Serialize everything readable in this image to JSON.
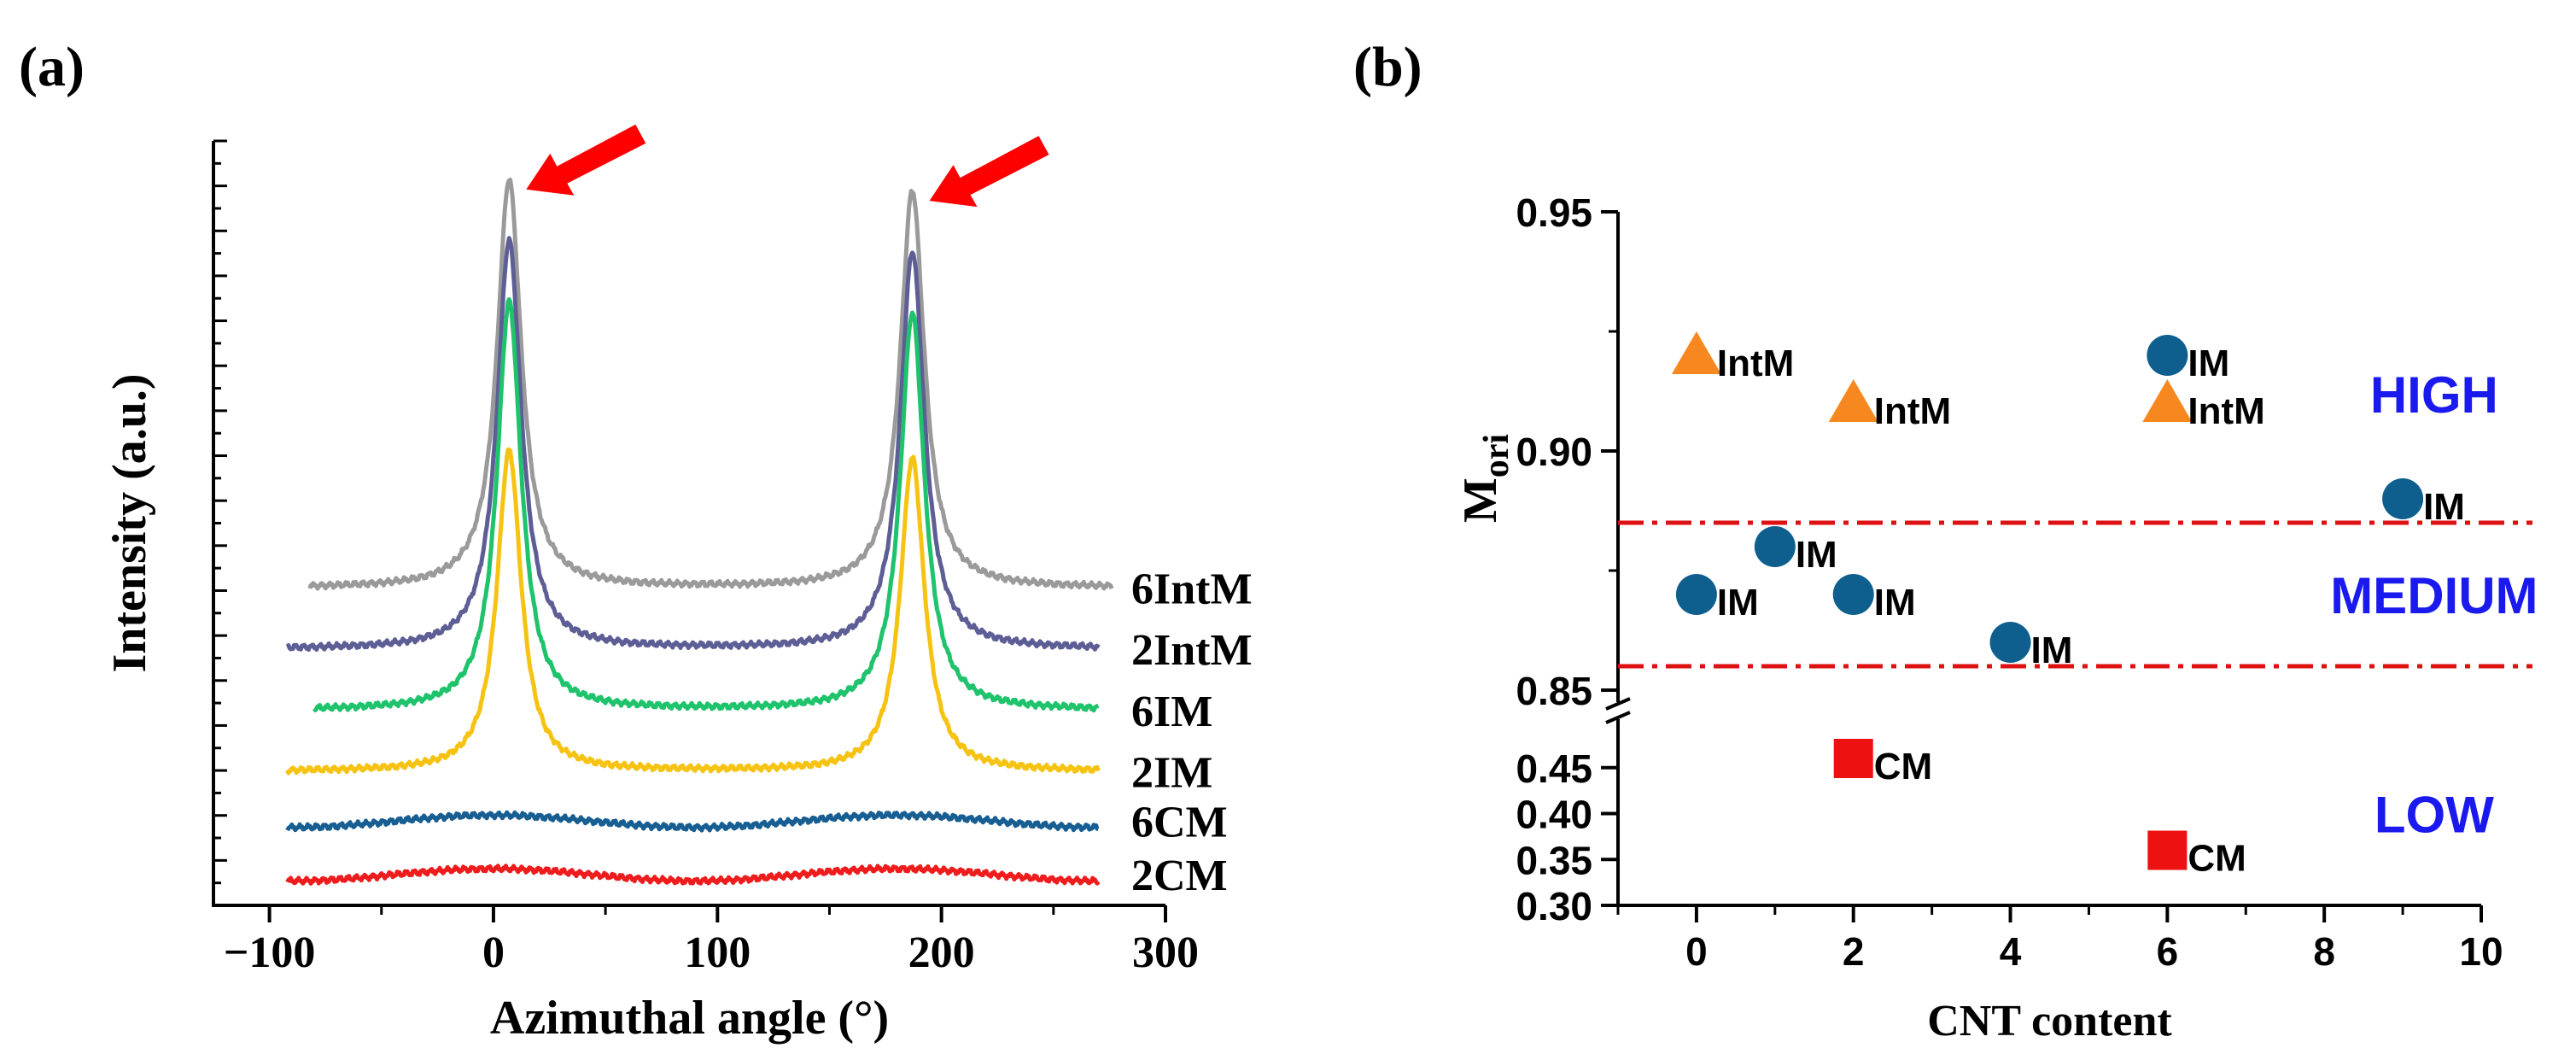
{
  "colors": {
    "axis": "#000000",
    "arrow": "#ff0000",
    "zone_line": "#dd1111",
    "zone_text": "#1a1aee",
    "circle": "#0e5f8e",
    "triangle": "#f7881f",
    "square": "#ee1111"
  },
  "chart_data": [
    {
      "panel_label": "(a)",
      "type": "line",
      "xlabel": "Azimuthal angle (°)",
      "ylabel": "Intensity (a.u.)",
      "xlim": [
        -125,
        300
      ],
      "xticks": [
        -100,
        0,
        100,
        200,
        300
      ],
      "xtick_labels": [
        "−100",
        "0",
        "100",
        "200",
        "300"
      ],
      "y_tick_labels_shown": false,
      "note_on_peaks": "Red arrows point at the 6IntM peaks near 7° and 187°",
      "series": [
        {
          "name": "6IntM",
          "color": "#9a9a9a",
          "x_range": [
            -82,
            276
          ],
          "baseline": 0.415,
          "peaks": [
            {
              "x": 7,
              "height": 0.535
            },
            {
              "x": 187,
              "height": 0.52
            }
          ]
        },
        {
          "name": "2IntM",
          "color": "#5e5e96",
          "x_range": [
            -92,
            270
          ],
          "baseline": 0.335,
          "peaks": [
            {
              "x": 7,
              "height": 0.535
            },
            {
              "x": 187,
              "height": 0.52
            }
          ]
        },
        {
          "name": "6IM",
          "color": "#1ec36c",
          "x_range": [
            -80,
            270
          ],
          "baseline": 0.255,
          "peaks": [
            {
              "x": 7,
              "height": 0.535
            },
            {
              "x": 187,
              "height": 0.52
            }
          ]
        },
        {
          "name": "2IM",
          "color": "#f6c313",
          "x_range": [
            -92,
            270
          ],
          "baseline": 0.175,
          "peaks": [
            {
              "x": 7,
              "height": 0.42
            },
            {
              "x": 187,
              "height": 0.41
            }
          ]
        },
        {
          "name": "6CM",
          "color": "#175e93",
          "x_range": [
            -92,
            270
          ],
          "baseline": 0.11,
          "peaks": []
        },
        {
          "name": "2CM",
          "color": "#ee1c1c",
          "x_range": [
            -92,
            270
          ],
          "baseline": 0.04,
          "peaks": []
        }
      ]
    },
    {
      "panel_label": "(b)",
      "type": "scatter",
      "xlabel": "CNT content",
      "ylabel": "M",
      "ylabel_subscript": "ori",
      "xlim": [
        -1,
        10
      ],
      "xticks": [
        0,
        2,
        4,
        6,
        8,
        10
      ],
      "ylim_upper": [
        0.85,
        0.95
      ],
      "yticks_upper": [
        "0.85",
        "0.90",
        "0.95"
      ],
      "ylim_lower": [
        0.3,
        0.5
      ],
      "yticks_lower": [
        "0.30",
        "0.35",
        "0.40",
        "0.45"
      ],
      "axis_break": "between 0.45 and 0.85",
      "threshold_lines": [
        0.885,
        0.855
      ],
      "zone_labels": [
        {
          "text": "HIGH",
          "x": 9.4,
          "y": 0.912
        },
        {
          "text": "MEDIUM",
          "x": 9.4,
          "y": 0.87
        },
        {
          "text": "LOW",
          "x": 9.4,
          "y": 0.4
        }
      ],
      "series": [
        {
          "marker": "circle",
          "points": [
            {
              "x": 0,
              "y": 0.87,
              "label": "IM"
            },
            {
              "x": 1,
              "y": 0.88,
              "label": "IM"
            },
            {
              "x": 2,
              "y": 0.87,
              "label": "IM"
            },
            {
              "x": 4,
              "y": 0.86,
              "label": "IM"
            },
            {
              "x": 6,
              "y": 0.92,
              "label": "IM"
            },
            {
              "x": 9,
              "y": 0.89,
              "label": "IM"
            }
          ]
        },
        {
          "marker": "triangle",
          "points": [
            {
              "x": 0,
              "y": 0.92,
              "label": "IntM"
            },
            {
              "x": 2,
              "y": 0.91,
              "label": "IntM"
            },
            {
              "x": 6,
              "y": 0.91,
              "label": "IntM"
            }
          ]
        },
        {
          "marker": "square",
          "points": [
            {
              "x": 2,
              "y": 0.46,
              "label": "CM"
            },
            {
              "x": 6,
              "y": 0.36,
              "label": "CM"
            }
          ]
        }
      ]
    }
  ]
}
